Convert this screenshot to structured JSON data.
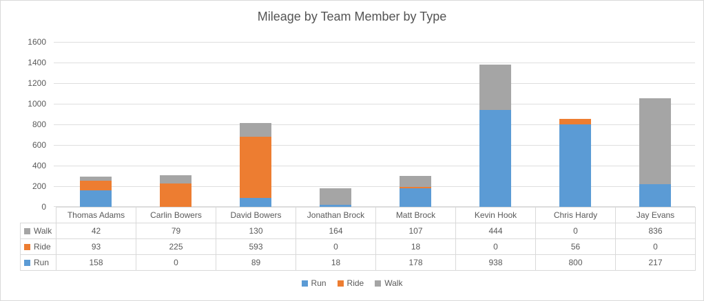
{
  "chart_data": {
    "type": "bar",
    "stacked": true,
    "title": "Mileage by Team Member by Type",
    "categories": [
      "Thomas Adams",
      "Carlin Bowers",
      "David Bowers",
      "Jonathan Brock",
      "Matt Brock",
      "Kevin Hook",
      "Chris Hardy",
      "Jay Evans"
    ],
    "series": [
      {
        "name": "Run",
        "color": "#5B9BD5",
        "values": [
          158,
          0,
          89,
          18,
          178,
          938,
          800,
          217
        ]
      },
      {
        "name": "Ride",
        "color": "#ED7D31",
        "values": [
          93,
          225,
          593,
          0,
          18,
          0,
          56,
          0
        ]
      },
      {
        "name": "Walk",
        "color": "#A5A5A5",
        "values": [
          42,
          79,
          130,
          164,
          107,
          444,
          0,
          836
        ]
      }
    ],
    "ylim": [
      0,
      1600
    ],
    "yticks": [
      0,
      200,
      400,
      600,
      800,
      1000,
      1200,
      1400,
      1600
    ],
    "grid": true,
    "gridline_color": "#DEDEDE",
    "text_color": "#595959",
    "border_color": "#D9D9D9",
    "legend_position": "bottom",
    "legend_items": [
      "Run",
      "Ride",
      "Walk"
    ],
    "data_table": {
      "shown": true,
      "row_order": [
        "Walk",
        "Ride",
        "Run"
      ]
    }
  }
}
